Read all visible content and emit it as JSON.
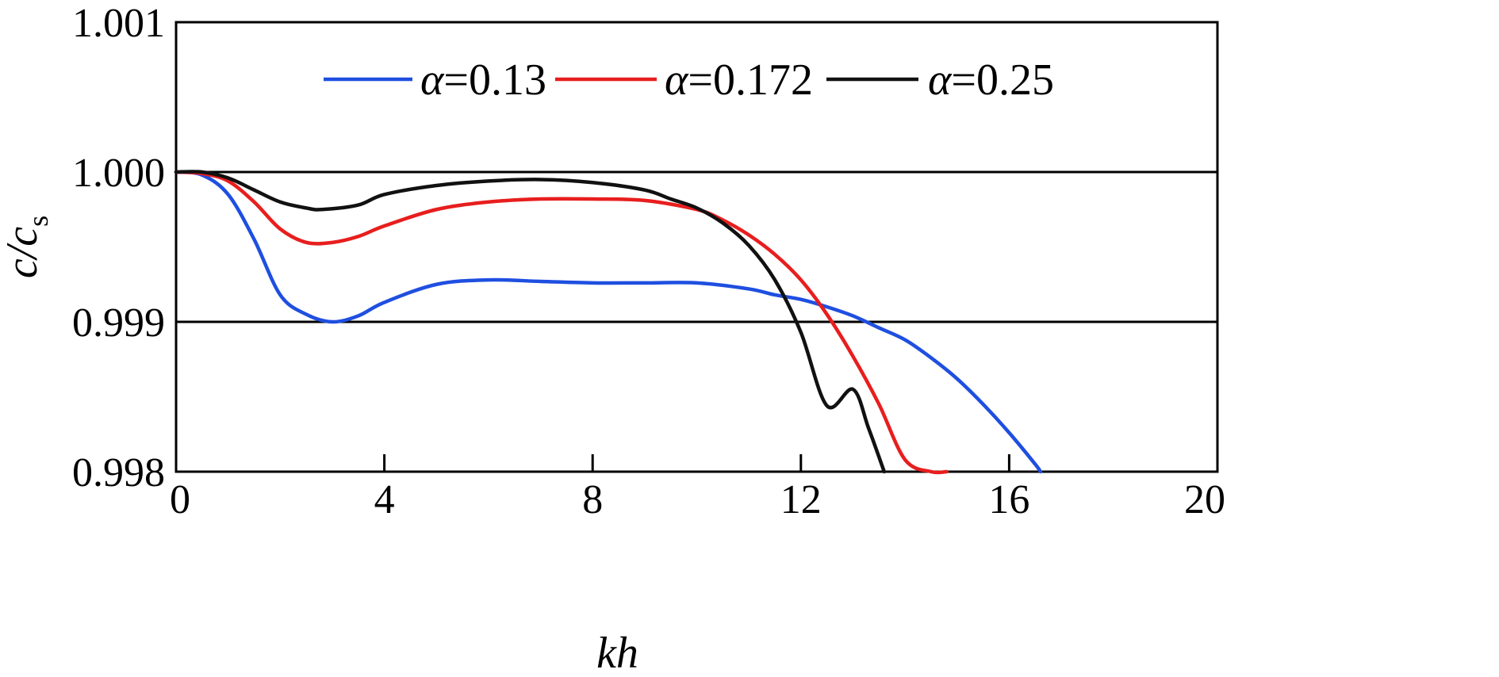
{
  "chart_data": {
    "type": "line",
    "xlabel": "kh",
    "ylabel": {
      "main": "c/c",
      "sub": "s"
    },
    "xlim": [
      0,
      20
    ],
    "ylim": [
      0.998,
      1.001
    ],
    "xticks": [
      0,
      4,
      8,
      12,
      16,
      20
    ],
    "xtick_labels": [
      "0",
      "4",
      "8",
      "12",
      "16",
      "20"
    ],
    "yticks": [
      0.998,
      0.999,
      1.0,
      1.001
    ],
    "ytick_labels": [
      "0.998",
      "0.999",
      "1.000",
      "1.001"
    ],
    "reference_lines_y": [
      0.999,
      1.0
    ],
    "grid": false,
    "legend_position": "top",
    "series": [
      {
        "name": "α=0.13",
        "symbol": "α",
        "value_text": "=0.13",
        "color": "#1f4fe0",
        "x": [
          0,
          0.5,
          1,
          1.5,
          2,
          2.5,
          3,
          3.5,
          4,
          5,
          6,
          7,
          8,
          9,
          10,
          11,
          11.5,
          12,
          12.5,
          13,
          13.5,
          14,
          14.5,
          15,
          15.5,
          16,
          16.5,
          16.6
        ],
        "y": [
          1.0,
          0.99998,
          0.99985,
          0.99955,
          0.99918,
          0.99905,
          0.999,
          0.99904,
          0.99913,
          0.99925,
          0.99928,
          0.99927,
          0.99926,
          0.99926,
          0.99926,
          0.99922,
          0.99918,
          0.99915,
          0.9991,
          0.99904,
          0.99896,
          0.99888,
          0.99876,
          0.99862,
          0.99845,
          0.99826,
          0.99805,
          0.998
        ]
      },
      {
        "name": "α=0.172",
        "symbol": "α",
        "value_text": "=0.172",
        "color": "#e81e1e",
        "x": [
          0,
          0.5,
          1,
          1.5,
          2,
          2.5,
          3,
          3.5,
          4,
          5,
          6,
          7,
          8,
          9,
          10,
          10.5,
          11,
          11.5,
          12,
          12.5,
          13,
          13.5,
          14,
          14.5,
          14.8
        ],
        "y": [
          1.0,
          0.99999,
          0.99994,
          0.9998,
          0.99962,
          0.99953,
          0.99953,
          0.99957,
          0.99964,
          0.99975,
          0.9998,
          0.99982,
          0.99982,
          0.99981,
          0.99975,
          0.99968,
          0.99958,
          0.99945,
          0.99928,
          0.99905,
          0.99877,
          0.99845,
          0.99808,
          0.99768,
          0.998
        ]
      },
      {
        "name": "α=0.25",
        "symbol": "α",
        "value_text": "=0.25",
        "color": "#111111",
        "x": [
          0,
          0.5,
          1,
          1.5,
          2,
          2.5,
          2.8,
          3.5,
          4,
          5,
          6,
          7,
          8,
          9,
          9.5,
          10,
          10.5,
          11,
          11.5,
          12,
          12.5,
          13,
          13.3,
          13.6
        ],
        "y": [
          1.0,
          1.0,
          0.99996,
          0.99988,
          0.9998,
          0.99976,
          0.99975,
          0.99978,
          0.99985,
          0.99991,
          0.99994,
          0.99995,
          0.99993,
          0.99988,
          0.99982,
          0.99976,
          0.99966,
          0.99951,
          0.99928,
          0.99893,
          0.99844,
          0.99886,
          0.99829,
          0.998
        ]
      }
    ]
  }
}
